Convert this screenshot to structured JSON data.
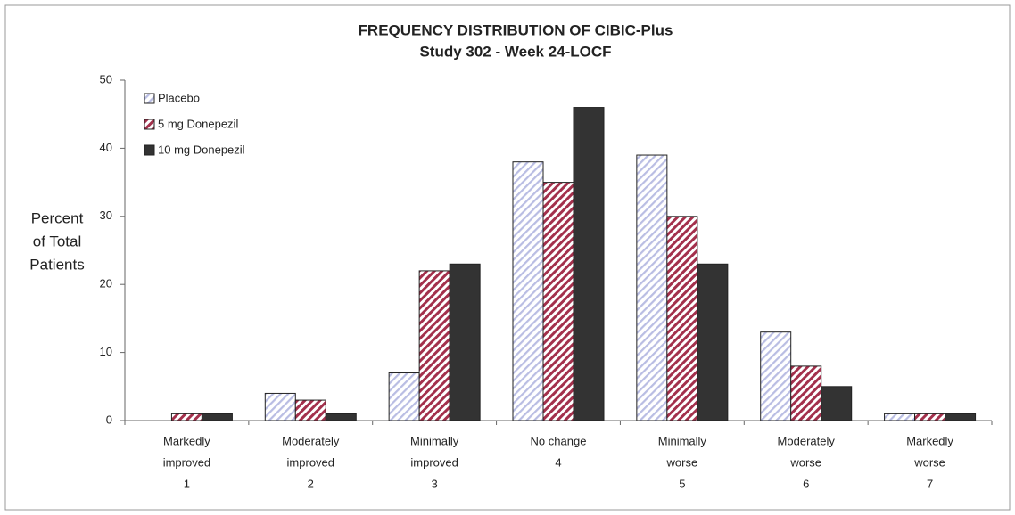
{
  "chart_data": {
    "type": "bar",
    "title": [
      "FREQUENCY DISTRIBUTION OF CIBIC-Plus",
      "Study 302 - Week 24-LOCF"
    ],
    "y_label": [
      "Percent",
      "of Total",
      "Patients"
    ],
    "categories": [
      [
        "Markedly",
        "improved",
        "1"
      ],
      [
        "Moderately",
        "improved",
        "2"
      ],
      [
        "Minimally",
        "improved",
        "3"
      ],
      [
        "No change",
        "4"
      ],
      [
        "Minimally",
        "worse",
        "5"
      ],
      [
        "Moderately",
        "worse",
        "6"
      ],
      [
        "Markedly",
        "worse",
        "7"
      ]
    ],
    "series": [
      {
        "name": "Placebo",
        "color": "#b9bde3",
        "values": [
          0,
          4,
          7,
          38,
          39,
          13,
          1
        ]
      },
      {
        "name": "5 mg Donepezil",
        "color": "#a3304c",
        "values": [
          1,
          3,
          22,
          35,
          30,
          8,
          1
        ]
      },
      {
        "name": "10 mg Donepezil",
        "color": "#333333",
        "values": [
          1,
          1,
          23,
          46,
          23,
          5,
          1
        ]
      }
    ],
    "ylim": [
      0,
      50
    ],
    "yticks": [
      0,
      10,
      20,
      30,
      40,
      50
    ],
    "grid": false,
    "legend": "top-left"
  }
}
